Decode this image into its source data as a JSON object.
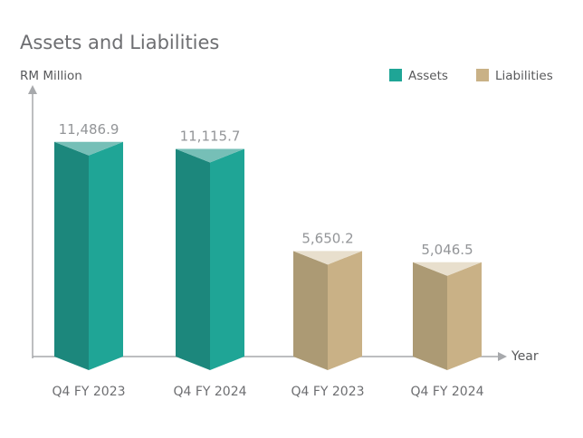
{
  "chart_data": {
    "type": "bar",
    "title": "Assets and Liabilities",
    "ylabel": "RM Million",
    "xlabel": "Year",
    "categories": [
      "Q4 FY 2023",
      "Q4 FY 2024",
      "Q4 FY 2023",
      "Q4 FY 2024"
    ],
    "values": [
      11486.9,
      11115.7,
      5650.2,
      5046.5
    ],
    "value_labels": [
      "11,486.9",
      "11,115.7",
      "5,650.2",
      "5,046.5"
    ],
    "bar_series": [
      "Assets",
      "Assets",
      "Liabilities",
      "Liabilities"
    ],
    "series": [
      {
        "name": "Assets",
        "color": "#1fa596"
      },
      {
        "name": "Liabilities",
        "color": "#c9b186"
      }
    ],
    "ylim": [
      0,
      12300
    ],
    "grid": false,
    "legend_position": "top-right"
  },
  "colors": {
    "assets_front": "#1fa596",
    "assets_side": "#1c877c",
    "assets_top": "#76bfb7",
    "liab_front": "#c9b186",
    "liab_side": "#ac9a74",
    "liab_top": "#e8dfcd",
    "axis": "#a7a9ac"
  }
}
